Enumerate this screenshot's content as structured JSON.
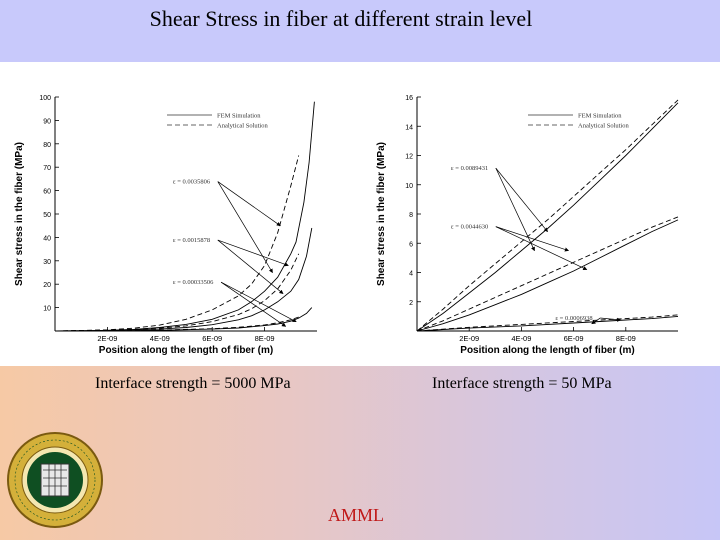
{
  "slide": {
    "title": "Shear Stress in fiber at different strain level",
    "footer": "AMML",
    "logo_text": "ADVANCED MECHANICS & MATERIALS LAB • FAMU-FSU •",
    "colors": {
      "title_band": "#c8c9fb",
      "footer_text": "#c01818",
      "logo_ring": "#d4b03a",
      "logo_center": "#0f4f22"
    }
  },
  "chart_data": [
    {
      "type": "line",
      "caption": "Interface strength = 5000 MPa",
      "xlabel": "Position along the length of fiber (m)",
      "ylabel": "Shear stress in the fiber (MPa)",
      "xlim": [
        0,
        1e-08
      ],
      "ylim": [
        0,
        100
      ],
      "x_ticks": [
        "2E-09",
        "4E-09",
        "6E-09",
        "8E-09"
      ],
      "x_tick_values": [
        2e-09,
        4e-09,
        6e-09,
        8e-09
      ],
      "y_ticks": [
        10,
        20,
        30,
        40,
        50,
        60,
        70,
        80,
        90,
        100
      ],
      "legend": [
        "FEM Simulation",
        "Analytical Solution"
      ],
      "legend_position": "top-right",
      "grid": false,
      "series": [
        {
          "method": "FEM Simulation",
          "dash": "solid",
          "x": [
            0,
            1e-09,
            2e-09,
            3e-09,
            4e-09,
            5e-09,
            6e-09,
            7e-09,
            7.5e-09,
            8e-09,
            8.5e-09,
            9e-09,
            9.2e-09,
            9.5e-09,
            9.7e-09,
            9.9e-09
          ],
          "values": [
            0,
            0.1,
            0.3,
            0.7,
            1.5,
            2.8,
            5,
            9,
            12.5,
            17,
            23,
            33,
            38,
            55,
            72,
            98
          ]
        },
        {
          "method": "Analytical Solution",
          "dash": "dashed",
          "x": [
            0,
            1e-09,
            2e-09,
            3e-09,
            4e-09,
            5e-09,
            6e-09,
            7e-09,
            7.5e-09,
            8e-09,
            8.5e-09,
            9e-09,
            9.3e-09
          ],
          "values": [
            0,
            0.2,
            0.5,
            1.2,
            2.5,
            5,
            9,
            15,
            20,
            28,
            42,
            62,
            75
          ]
        },
        {
          "method": "FEM Simulation",
          "dash": "solid",
          "x": [
            0,
            2e-09,
            4e-09,
            5e-09,
            6e-09,
            7e-09,
            7.5e-09,
            8e-09,
            8.5e-09,
            9e-09,
            9.3e-09,
            9.6e-09,
            9.8e-09
          ],
          "values": [
            0,
            0.2,
            0.8,
            1.5,
            2.7,
            4.8,
            6.5,
            9,
            12.5,
            17,
            22,
            32,
            44
          ]
        },
        {
          "method": "Analytical Solution",
          "dash": "dashed",
          "x": [
            0,
            2e-09,
            4e-09,
            5e-09,
            6e-09,
            7e-09,
            7.5e-09,
            8e-09,
            8.5e-09,
            9e-09,
            9.3e-09
          ],
          "values": [
            0,
            0.3,
            1.2,
            2.2,
            4,
            7,
            9.5,
            13,
            18,
            26,
            33
          ]
        },
        {
          "method": "FEM Simulation",
          "dash": "solid",
          "x": [
            0,
            2e-09,
            4e-09,
            6e-09,
            7e-09,
            8e-09,
            8.5e-09,
            9e-09,
            9.3e-09,
            9.6e-09,
            9.8e-09
          ],
          "values": [
            0,
            0.1,
            0.3,
            0.8,
            1.3,
            2.3,
            3,
            4.2,
            5.5,
            7.5,
            10
          ]
        },
        {
          "method": "Analytical Solution",
          "dash": "dashed",
          "x": [
            0,
            2e-09,
            4e-09,
            6e-09,
            7e-09,
            8e-09,
            8.5e-09,
            9e-09,
            9.3e-09
          ],
          "values": [
            0,
            0.15,
            0.4,
            1,
            1.6,
            2.6,
            3.5,
            4.8,
            6
          ]
        }
      ],
      "annotations": [
        {
          "text": "ε = 0.0035806",
          "x": 4.5e-09,
          "y": 63,
          "arrow_targets": [
            [
              8.6e-09,
              45
            ],
            [
              8.3e-09,
              25
            ]
          ]
        },
        {
          "text": "ε = 0.0015878",
          "x": 4.5e-09,
          "y": 38,
          "arrow_targets": [
            [
              8.9e-09,
              28
            ],
            [
              8.7e-09,
              16
            ]
          ]
        },
        {
          "text": "ε = 0.00033506",
          "x": 4.5e-09,
          "y": 20,
          "arrow_targets": [
            [
              9.2e-09,
              4
            ],
            [
              8.8e-09,
              2
            ]
          ]
        }
      ]
    },
    {
      "type": "line",
      "caption": "Interface strength = 50 MPa",
      "xlabel": "Position along the length of fiber (m)",
      "ylabel": "Shear stress in the fiber (MPa)",
      "xlim": [
        0,
        1e-08
      ],
      "ylim": [
        0,
        16
      ],
      "x_ticks": [
        "2E-09",
        "4E-09",
        "6E-09",
        "8E-09"
      ],
      "x_tick_values": [
        2e-09,
        4e-09,
        6e-09,
        8e-09
      ],
      "y_ticks": [
        2,
        4,
        6,
        8,
        10,
        12,
        14,
        16
      ],
      "legend": [
        "FEM Simulation",
        "Analytical Solution"
      ],
      "legend_position": "top-right",
      "grid": false,
      "series": [
        {
          "method": "FEM Simulation",
          "dash": "solid",
          "x": [
            0,
            1e-09,
            2e-09,
            3e-09,
            4e-09,
            5e-09,
            6e-09,
            7e-09,
            8e-09,
            9e-09,
            1e-08
          ],
          "values": [
            0,
            1.2,
            2.6,
            4,
            5.5,
            7,
            8.6,
            10.3,
            12,
            13.8,
            15.6
          ]
        },
        {
          "method": "Analytical Solution",
          "dash": "dashed",
          "x": [
            0,
            1e-09,
            2e-09,
            3e-09,
            4e-09,
            5e-09,
            6e-09,
            7e-09,
            8e-09,
            9e-09,
            1e-08
          ],
          "values": [
            0,
            1.5,
            3.1,
            4.6,
            6.1,
            7.6,
            9.2,
            10.8,
            12.4,
            14.1,
            15.8
          ]
        },
        {
          "method": "FEM Simulation",
          "dash": "solid",
          "x": [
            0,
            1e-09,
            2e-09,
            3e-09,
            4e-09,
            5e-09,
            6e-09,
            7e-09,
            8e-09,
            9e-09,
            1e-08
          ],
          "values": [
            0,
            0.5,
            1.1,
            1.8,
            2.5,
            3.3,
            4.1,
            5,
            5.9,
            6.8,
            7.6
          ]
        },
        {
          "method": "Analytical Solution",
          "dash": "dashed",
          "x": [
            0,
            1e-09,
            2e-09,
            3e-09,
            4e-09,
            5e-09,
            6e-09,
            7e-09,
            8e-09,
            9e-09,
            1e-08
          ],
          "values": [
            0,
            0.7,
            1.5,
            2.3,
            3.1,
            3.9,
            4.7,
            5.5,
            6.3,
            7.1,
            7.8
          ]
        },
        {
          "method": "FEM Simulation",
          "dash": "solid",
          "x": [
            0,
            2e-09,
            4e-09,
            6e-09,
            8e-09,
            9e-09,
            1e-08
          ],
          "values": [
            0,
            0.2,
            0.35,
            0.55,
            0.75,
            0.85,
            1.0
          ]
        },
        {
          "method": "Analytical Solution",
          "dash": "dashed",
          "x": [
            0,
            2e-09,
            4e-09,
            6e-09,
            8e-09,
            9e-09,
            1e-08
          ],
          "values": [
            0,
            0.25,
            0.45,
            0.65,
            0.85,
            0.95,
            1.1
          ]
        }
      ],
      "annotations": [
        {
          "text": "ε = 0.0089431",
          "x": 1.3e-09,
          "y": 11,
          "arrow_targets": [
            [
              5e-09,
              6.8
            ],
            [
              4.5e-09,
              5.5
            ]
          ]
        },
        {
          "text": "ε = 0.0044630",
          "x": 1.3e-09,
          "y": 7,
          "arrow_targets": [
            [
              5.8e-09,
              5.5
            ],
            [
              6.5e-09,
              4.2
            ]
          ]
        },
        {
          "text": "ε = 0.0006938",
          "x": 5.3e-09,
          "y": 0.75,
          "arrow_targets": [
            [
              6.7e-09,
              0.5
            ],
            [
              7.8e-09,
              0.75
            ]
          ]
        }
      ]
    }
  ]
}
